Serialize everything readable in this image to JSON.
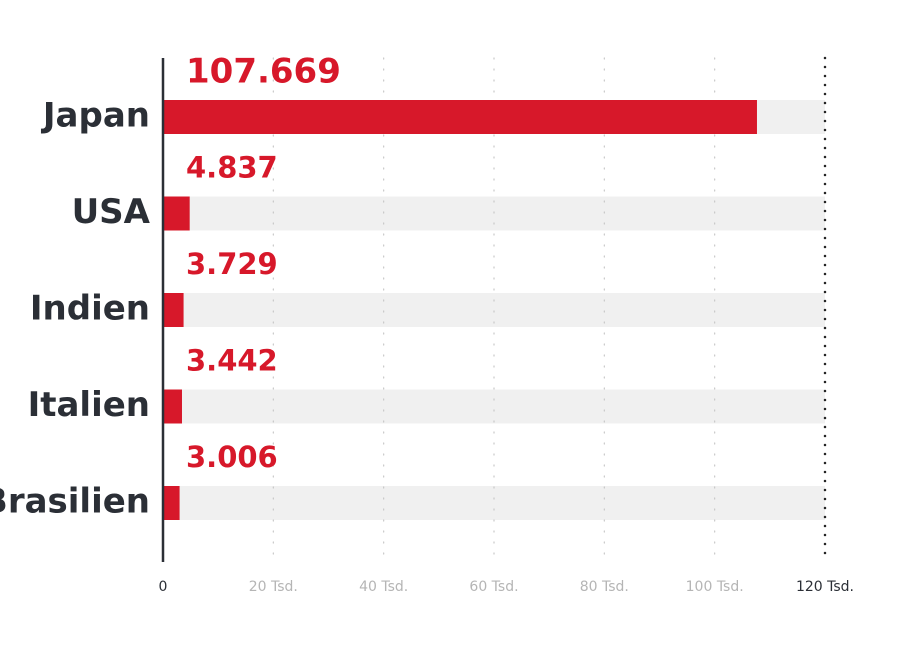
{
  "chart_data": {
    "type": "bar",
    "orientation": "horizontal",
    "categories": [
      "Japan",
      "USA",
      "Indien",
      "Italien",
      "Brasilien"
    ],
    "values": [
      107669,
      4837,
      3729,
      3442,
      3006
    ],
    "value_labels": [
      "107.669",
      "4.837",
      "3.729",
      "3.442",
      "3.006"
    ],
    "color": "#d7182a",
    "xlim": [
      0,
      120000
    ],
    "xticks": [
      0,
      {
        "value": 20000,
        "label": "20 Tsd."
      },
      {
        "value": 40000,
        "label": "40 Tsd."
      },
      {
        "value": 60000,
        "label": "60 Tsd."
      },
      {
        "value": 80000,
        "label": "80 Tsd."
      },
      {
        "value": 100000,
        "label": "100 Tsd."
      },
      {
        "value": 120000,
        "label": "120 Tsd."
      }
    ],
    "grid": true
  }
}
